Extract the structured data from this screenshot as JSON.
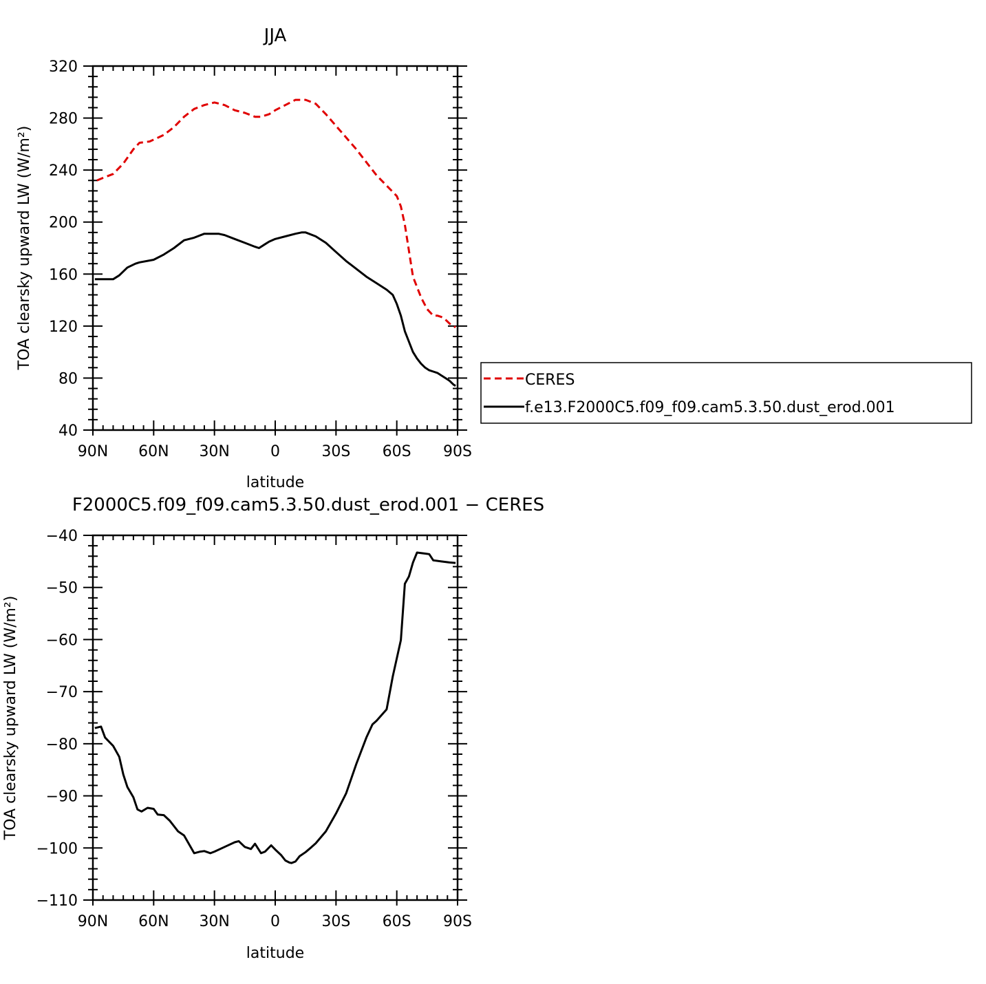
{
  "chart_data": [
    {
      "type": "line",
      "title": "JJA",
      "xlabel": "latitude",
      "ylabel": "TOA clearsky upward LW (W/m²)",
      "xlim": [
        90,
        -90
      ],
      "ylim": [
        40,
        320
      ],
      "x_ticks": [
        90,
        60,
        30,
        0,
        -30,
        -60,
        -90
      ],
      "x_tick_labels": [
        "90N",
        "60N",
        "30N",
        "0",
        "30S",
        "60S",
        "90S"
      ],
      "y_ticks": [
        40,
        80,
        120,
        160,
        200,
        240,
        280,
        320
      ],
      "y_tick_labels": [
        "40",
        "80",
        "120",
        "160",
        "200",
        "240",
        "280",
        "320"
      ],
      "grid": false,
      "legend_position": "right",
      "series": [
        {
          "name": "CERES",
          "color": "#e00000",
          "style": "dashed",
          "x": [
            88,
            85,
            80,
            75,
            70,
            67,
            62,
            55,
            50,
            45,
            40,
            35,
            30,
            25,
            20,
            15,
            10,
            7,
            3,
            0,
            -5,
            -10,
            -15,
            -20,
            -25,
            -30,
            -35,
            -40,
            -45,
            -50,
            -55,
            -60,
            -62,
            -64,
            -66,
            -68,
            -70,
            -72,
            -75,
            -78,
            -80,
            -82,
            -84,
            -86,
            -88,
            -89
          ],
          "values": [
            232,
            234,
            237,
            245,
            256,
            261,
            262,
            267,
            273,
            281,
            287,
            290,
            292,
            290,
            286,
            284,
            281,
            281,
            283,
            286,
            290,
            294,
            294,
            291,
            283,
            274,
            265,
            256,
            246,
            236,
            228,
            220,
            212,
            198,
            178,
            158,
            150,
            142,
            133,
            128,
            128,
            127,
            125,
            122,
            120,
            119
          ]
        },
        {
          "name": "f.e13.F2000C5.f09_f09.cam5.3.50.dust_erod.001",
          "color": "#000000",
          "style": "solid",
          "x": [
            89,
            85,
            80,
            77,
            73,
            69,
            67,
            60,
            55,
            50,
            45,
            40,
            35,
            31,
            28,
            25,
            20,
            15,
            10,
            8,
            5,
            3,
            0,
            -5,
            -10,
            -13,
            -15,
            -20,
            -25,
            -30,
            -35,
            -40,
            -45,
            -50,
            -55,
            -58,
            -60,
            -62,
            -64,
            -66,
            -68,
            -70,
            -72,
            -74,
            -76,
            -78,
            -80,
            -82,
            -84,
            -86,
            -88,
            -89
          ],
          "values": [
            156,
            156,
            156,
            159,
            165,
            168,
            169,
            171,
            175,
            180,
            186,
            188,
            191,
            191,
            191,
            190,
            187,
            184,
            181,
            180,
            183,
            185,
            187,
            189,
            191,
            192,
            192,
            189,
            184,
            177,
            170,
            164,
            158,
            153,
            148,
            144,
            137,
            128,
            116,
            108,
            100,
            95,
            91,
            88,
            86,
            85,
            84,
            82,
            80,
            78,
            75,
            74
          ]
        }
      ]
    },
    {
      "type": "line",
      "title": "F2000C5.f09_f09.cam5.3.50.dust_erod.001 − CERES",
      "xlabel": "latitude",
      "ylabel": "TOA clearsky upward LW (W/m²)",
      "xlim": [
        90,
        -90
      ],
      "ylim": [
        -110,
        -40
      ],
      "x_ticks": [
        90,
        60,
        30,
        0,
        -30,
        -60,
        -90
      ],
      "x_tick_labels": [
        "90N",
        "60N",
        "30N",
        "0",
        "30S",
        "60S",
        "90S"
      ],
      "y_ticks": [
        -110,
        -100,
        -90,
        -80,
        -70,
        -60,
        -50,
        -40
      ],
      "y_tick_labels": [
        "−110",
        "−100",
        "−90",
        "−80",
        "−70",
        "−60",
        "−50",
        "−40"
      ],
      "grid": false,
      "series": [
        {
          "color": "#000000",
          "style": "solid",
          "x": [
            89,
            86,
            84,
            80,
            77,
            75,
            73,
            70,
            68,
            66,
            63,
            60,
            58,
            55,
            52,
            48,
            45,
            40,
            37,
            35,
            32,
            30,
            25,
            20,
            18,
            15,
            12,
            10,
            7,
            5,
            2,
            0,
            -3,
            -5,
            -7,
            -8,
            -10,
            -12,
            -15,
            -18,
            -20,
            -25,
            -30,
            -35,
            -40,
            -45,
            -48,
            -50,
            -55,
            -58,
            -62,
            -64,
            -66,
            -68,
            -70,
            -72,
            -74,
            -76,
            -78,
            -82,
            -84,
            -86,
            -89
          ],
          "values": [
            -77,
            -76.7,
            -78.8,
            -80.4,
            -82.5,
            -85.9,
            -88.3,
            -90.3,
            -92.6,
            -93,
            -92.3,
            -92.5,
            -93.6,
            -93.7,
            -94.8,
            -96.8,
            -97.6,
            -101,
            -100.7,
            -100.6,
            -101,
            -100.7,
            -99.8,
            -98.9,
            -98.7,
            -99.8,
            -100.2,
            -99.2,
            -101,
            -100.7,
            -99.5,
            -100.3,
            -101.4,
            -102.4,
            -102.8,
            -102.9,
            -102.6,
            -101.6,
            -100.8,
            -99.8,
            -99.1,
            -96.8,
            -93.4,
            -89.5,
            -83.9,
            -78.8,
            -76.3,
            -75.6,
            -73.4,
            -67.1,
            -60.1,
            -49.3,
            -47.9,
            -45.2,
            -43.3,
            -43.4,
            -43.5,
            -43.6,
            -44.8,
            -45,
            -45.1,
            -45.2,
            -45.3
          ]
        }
      ]
    }
  ]
}
